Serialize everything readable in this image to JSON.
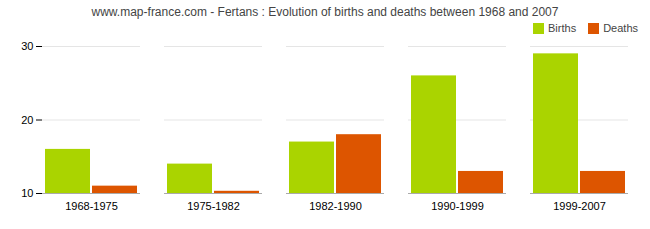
{
  "chart_data": {
    "type": "bar",
    "title": "www.map-france.com - Fertans : Evolution of births and deaths between 1968 and 2007",
    "categories": [
      "1968-1975",
      "1975-1982",
      "1982-1990",
      "1990-1999",
      "1999-2007"
    ],
    "series": [
      {
        "name": "Births",
        "color": "#aad400",
        "values": [
          16,
          14,
          17,
          26,
          29
        ]
      },
      {
        "name": "Deaths",
        "color": "#dd5500",
        "values": [
          11,
          10.3,
          18,
          13,
          13
        ]
      }
    ],
    "ylim": [
      10,
      30
    ],
    "yticks": [
      10,
      20,
      30
    ],
    "grid": true,
    "legend": "upper right"
  }
}
